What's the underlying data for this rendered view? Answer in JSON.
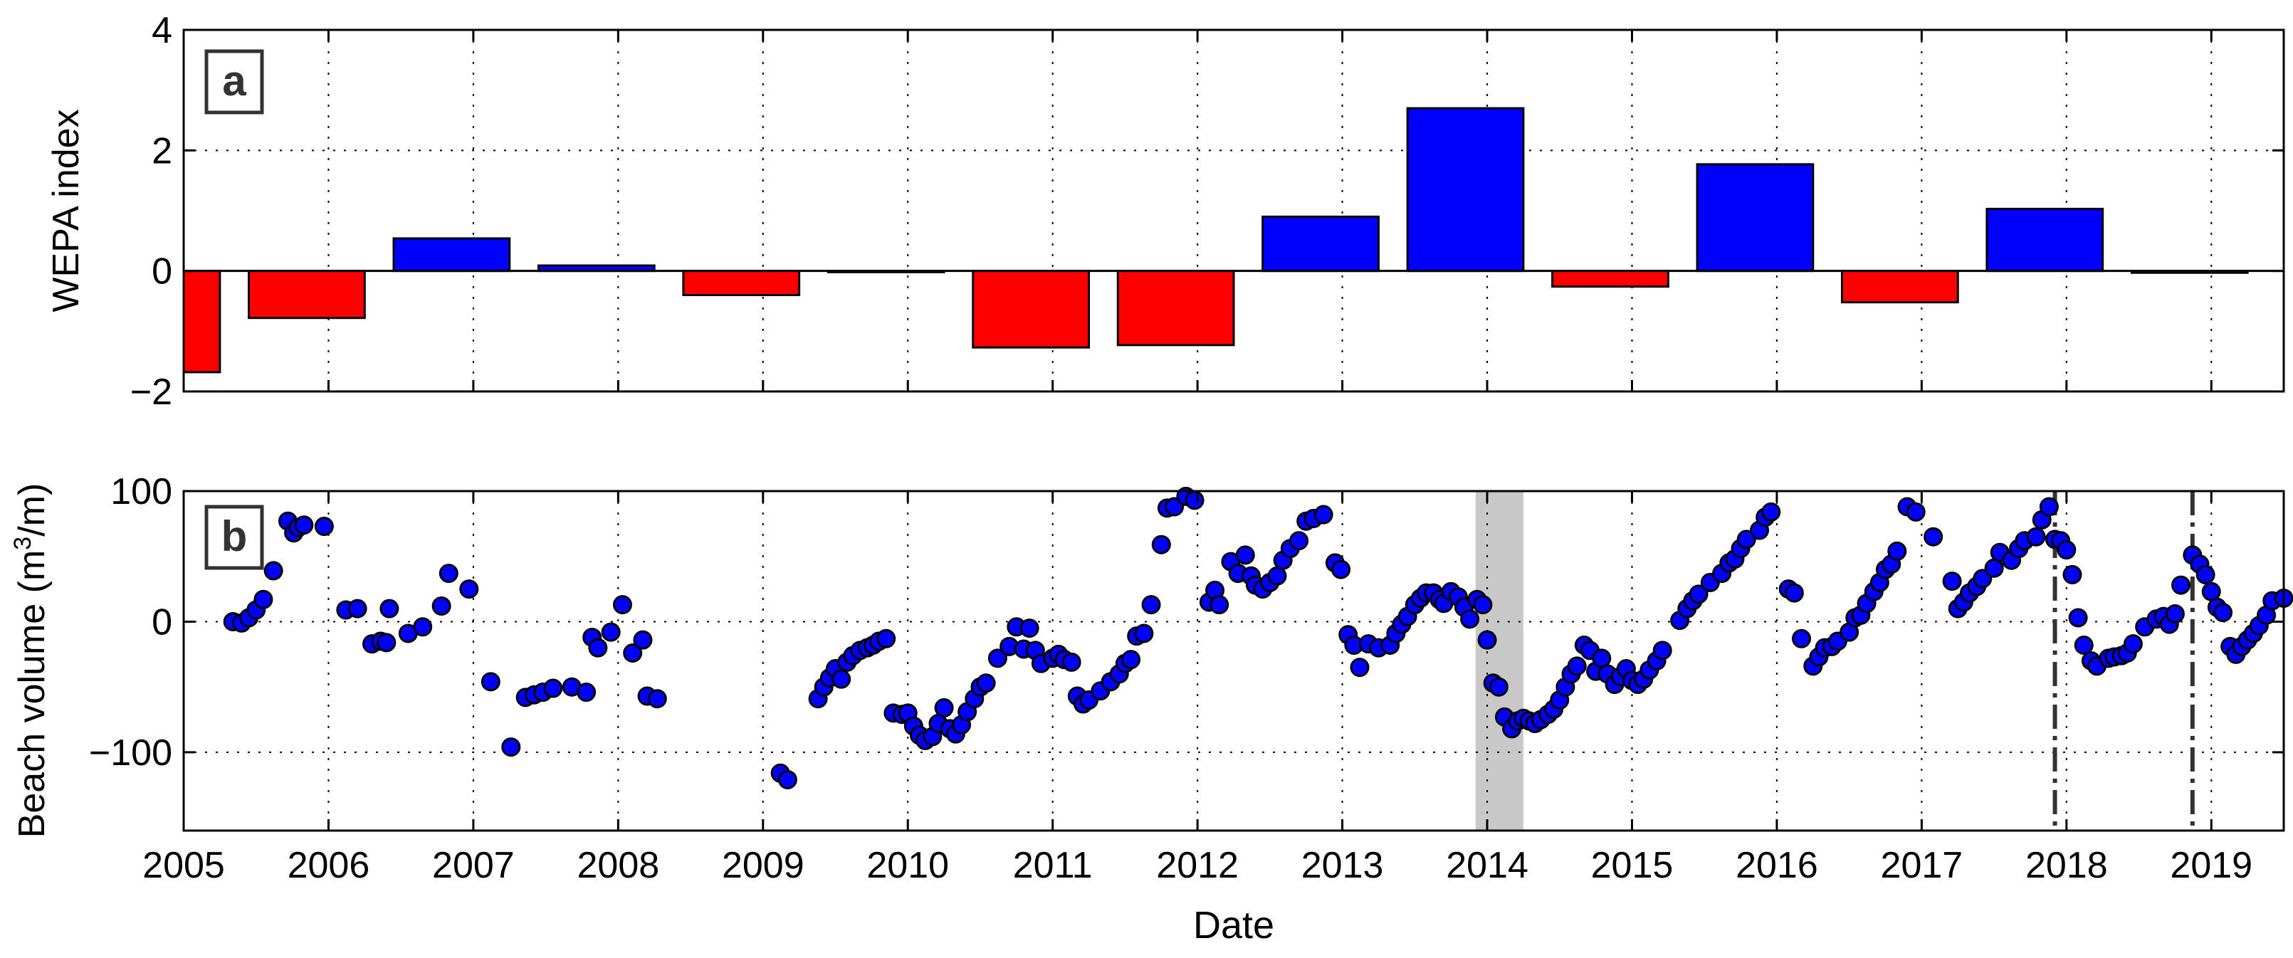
{
  "panels": {
    "a": {
      "label": "a",
      "ylabel": "WEPA index"
    },
    "b": {
      "label": "b",
      "ylabel_main": "Beach volume (m",
      "ylabel_sup": "3",
      "ylabel_tail": "/m)"
    }
  },
  "colors": {
    "negative_bar": "#ff0000",
    "positive_bar": "#0000ff",
    "points": "#0000ff",
    "shade": "#c8c8c8",
    "event_line": "#333333"
  },
  "chart_data": [
    {
      "type": "bar",
      "panel": "a",
      "ylabel": "WEPA index",
      "xlim": [
        2005.0,
        2019.5
      ],
      "ylim": [
        -2,
        4
      ],
      "yticks": [
        -2,
        0,
        2,
        4
      ],
      "xticks": [
        2005,
        2006,
        2007,
        2008,
        2009,
        2010,
        2011,
        2012,
        2013,
        2014,
        2015,
        2016,
        2017,
        2018,
        2019
      ],
      "grid": true,
      "bars": [
        {
          "start": 2005.0,
          "end": 2005.25,
          "value": -1.68
        },
        {
          "start": 2005.45,
          "end": 2006.25,
          "value": -0.78
        },
        {
          "start": 2006.45,
          "end": 2007.25,
          "value": 0.54
        },
        {
          "start": 2007.45,
          "end": 2008.25,
          "value": 0.09
        },
        {
          "start": 2008.45,
          "end": 2009.25,
          "value": -0.4
        },
        {
          "start": 2009.45,
          "end": 2010.25,
          "value": -0.02
        },
        {
          "start": 2010.45,
          "end": 2011.25,
          "value": -1.27
        },
        {
          "start": 2011.45,
          "end": 2012.25,
          "value": -1.23
        },
        {
          "start": 2012.45,
          "end": 2013.25,
          "value": 0.9
        },
        {
          "start": 2013.45,
          "end": 2014.25,
          "value": 2.7
        },
        {
          "start": 2014.45,
          "end": 2015.25,
          "value": -0.26
        },
        {
          "start": 2015.45,
          "end": 2016.25,
          "value": 1.77
        },
        {
          "start": 2016.45,
          "end": 2017.25,
          "value": -0.52
        },
        {
          "start": 2017.45,
          "end": 2018.25,
          "value": 1.03
        },
        {
          "start": 2018.45,
          "end": 2019.25,
          "value": -0.03
        }
      ]
    },
    {
      "type": "scatter",
      "panel": "b",
      "xlabel": "Date",
      "ylabel": "Beach volume (m³/m)",
      "xlim": [
        2005.0,
        2019.5
      ],
      "ylim": [
        -160,
        100
      ],
      "yticks": [
        -100,
        0,
        100
      ],
      "xticks": [
        2005,
        2006,
        2007,
        2008,
        2009,
        2010,
        2011,
        2012,
        2013,
        2014,
        2015,
        2016,
        2017,
        2018,
        2019
      ],
      "grid": true,
      "shaded_range": [
        2013.92,
        2014.25
      ],
      "event_lines": [
        2017.92,
        2018.87
      ],
      "points": [
        [
          2005.34,
          0
        ],
        [
          2005.4,
          -1
        ],
        [
          2005.45,
          3
        ],
        [
          2005.5,
          9
        ],
        [
          2005.55,
          17
        ],
        [
          2005.62,
          39
        ],
        [
          2005.72,
          77
        ],
        [
          2005.76,
          68
        ],
        [
          2005.79,
          72
        ],
        [
          2005.83,
          74
        ],
        [
          2005.97,
          73
        ],
        [
          2006.12,
          9
        ],
        [
          2006.2,
          10
        ],
        [
          2006.3,
          -17
        ],
        [
          2006.36,
          -15
        ],
        [
          2006.4,
          -16
        ],
        [
          2006.42,
          10
        ],
        [
          2006.55,
          -9
        ],
        [
          2006.65,
          -4
        ],
        [
          2006.78,
          12
        ],
        [
          2006.83,
          37
        ],
        [
          2006.97,
          25
        ],
        [
          2007.12,
          -46
        ],
        [
          2007.26,
          -96
        ],
        [
          2007.36,
          -58
        ],
        [
          2007.42,
          -56
        ],
        [
          2007.48,
          -54
        ],
        [
          2007.55,
          -51
        ],
        [
          2007.68,
          -50
        ],
        [
          2007.78,
          -54
        ],
        [
          2007.82,
          -12
        ],
        [
          2007.86,
          -20
        ],
        [
          2007.95,
          -8
        ],
        [
          2008.03,
          13
        ],
        [
          2008.1,
          -24
        ],
        [
          2008.17,
          -14
        ],
        [
          2008.2,
          -57
        ],
        [
          2008.27,
          -59
        ],
        [
          2009.12,
          -116
        ],
        [
          2009.17,
          -121
        ],
        [
          2009.38,
          -59
        ],
        [
          2009.42,
          -50
        ],
        [
          2009.46,
          -43
        ],
        [
          2009.5,
          -36
        ],
        [
          2009.54,
          -44
        ],
        [
          2009.58,
          -31
        ],
        [
          2009.62,
          -26
        ],
        [
          2009.67,
          -22
        ],
        [
          2009.72,
          -20
        ],
        [
          2009.76,
          -18
        ],
        [
          2009.8,
          -15
        ],
        [
          2009.85,
          -13
        ],
        [
          2009.9,
          -70
        ],
        [
          2009.96,
          -71
        ],
        [
          2010.0,
          -70
        ],
        [
          2010.04,
          -80
        ],
        [
          2010.08,
          -87
        ],
        [
          2010.12,
          -91
        ],
        [
          2010.17,
          -88
        ],
        [
          2010.21,
          -78
        ],
        [
          2010.25,
          -66
        ],
        [
          2010.29,
          -82
        ],
        [
          2010.33,
          -86
        ],
        [
          2010.37,
          -79
        ],
        [
          2010.41,
          -69
        ],
        [
          2010.46,
          -59
        ],
        [
          2010.5,
          -50
        ],
        [
          2010.54,
          -47
        ],
        [
          2010.62,
          -28
        ],
        [
          2010.7,
          -19
        ],
        [
          2010.75,
          -4
        ],
        [
          2010.8,
          -21
        ],
        [
          2010.84,
          -5
        ],
        [
          2010.88,
          -22
        ],
        [
          2010.92,
          -32
        ],
        [
          2011.0,
          -28
        ],
        [
          2011.04,
          -25
        ],
        [
          2011.08,
          -29
        ],
        [
          2011.13,
          -31
        ],
        [
          2011.17,
          -57
        ],
        [
          2011.21,
          -63
        ],
        [
          2011.25,
          -60
        ],
        [
          2011.33,
          -53
        ],
        [
          2011.4,
          -46
        ],
        [
          2011.46,
          -40
        ],
        [
          2011.5,
          -32
        ],
        [
          2011.54,
          -29
        ],
        [
          2011.58,
          -11
        ],
        [
          2011.63,
          -9
        ],
        [
          2011.68,
          13
        ],
        [
          2011.75,
          59
        ],
        [
          2011.79,
          87
        ],
        [
          2011.84,
          88
        ],
        [
          2011.92,
          96
        ],
        [
          2011.98,
          93
        ],
        [
          2012.08,
          15
        ],
        [
          2012.12,
          24
        ],
        [
          2012.15,
          13
        ],
        [
          2012.23,
          46
        ],
        [
          2012.28,
          37
        ],
        [
          2012.33,
          51
        ],
        [
          2012.37,
          35
        ],
        [
          2012.4,
          28
        ],
        [
          2012.45,
          25
        ],
        [
          2012.5,
          30
        ],
        [
          2012.55,
          35
        ],
        [
          2012.59,
          47
        ],
        [
          2012.64,
          56
        ],
        [
          2012.7,
          62
        ],
        [
          2012.75,
          77
        ],
        [
          2012.8,
          79
        ],
        [
          2012.87,
          82
        ],
        [
          2012.95,
          45
        ],
        [
          2012.99,
          40
        ],
        [
          2013.04,
          -10
        ],
        [
          2013.08,
          -18
        ],
        [
          2013.12,
          -35
        ],
        [
          2013.18,
          -17
        ],
        [
          2013.25,
          -20
        ],
        [
          2013.33,
          -18
        ],
        [
          2013.37,
          -9
        ],
        [
          2013.41,
          -2
        ],
        [
          2013.45,
          4
        ],
        [
          2013.5,
          13
        ],
        [
          2013.54,
          18
        ],
        [
          2013.58,
          22
        ],
        [
          2013.63,
          22
        ],
        [
          2013.67,
          17
        ],
        [
          2013.7,
          14
        ],
        [
          2013.75,
          23
        ],
        [
          2013.8,
          19
        ],
        [
          2013.84,
          11
        ],
        [
          2013.88,
          2
        ],
        [
          2013.93,
          17
        ],
        [
          2013.97,
          13
        ],
        [
          2014.0,
          -14
        ],
        [
          2014.04,
          -47
        ],
        [
          2014.08,
          -50
        ],
        [
          2014.12,
          -73
        ],
        [
          2014.17,
          -82
        ],
        [
          2014.21,
          -76
        ],
        [
          2014.25,
          -74
        ],
        [
          2014.29,
          -76
        ],
        [
          2014.33,
          -78
        ],
        [
          2014.37,
          -75
        ],
        [
          2014.42,
          -71
        ],
        [
          2014.46,
          -67
        ],
        [
          2014.5,
          -60
        ],
        [
          2014.54,
          -50
        ],
        [
          2014.58,
          -40
        ],
        [
          2014.62,
          -34
        ],
        [
          2014.67,
          -18
        ],
        [
          2014.71,
          -22
        ],
        [
          2014.75,
          -38
        ],
        [
          2014.79,
          -28
        ],
        [
          2014.83,
          -40
        ],
        [
          2014.88,
          -48
        ],
        [
          2014.92,
          -42
        ],
        [
          2014.96,
          -36
        ],
        [
          2015.0,
          -45
        ],
        [
          2015.04,
          -48
        ],
        [
          2015.08,
          -44
        ],
        [
          2015.12,
          -37
        ],
        [
          2015.17,
          -30
        ],
        [
          2015.21,
          -22
        ],
        [
          2015.33,
          1
        ],
        [
          2015.38,
          10
        ],
        [
          2015.42,
          16
        ],
        [
          2015.46,
          21
        ],
        [
          2015.54,
          30
        ],
        [
          2015.62,
          37
        ],
        [
          2015.67,
          45
        ],
        [
          2015.71,
          48
        ],
        [
          2015.75,
          56
        ],
        [
          2015.79,
          63
        ],
        [
          2015.88,
          70
        ],
        [
          2015.92,
          80
        ],
        [
          2015.96,
          84
        ],
        [
          2016.08,
          25
        ],
        [
          2016.12,
          22
        ],
        [
          2016.17,
          -13
        ],
        [
          2016.25,
          -34
        ],
        [
          2016.29,
          -27
        ],
        [
          2016.33,
          -20
        ],
        [
          2016.38,
          -19
        ],
        [
          2016.42,
          -15
        ],
        [
          2016.5,
          -8
        ],
        [
          2016.54,
          3
        ],
        [
          2016.58,
          5
        ],
        [
          2016.62,
          14
        ],
        [
          2016.67,
          23
        ],
        [
          2016.71,
          30
        ],
        [
          2016.75,
          40
        ],
        [
          2016.79,
          44
        ],
        [
          2016.83,
          54
        ],
        [
          2016.9,
          88
        ],
        [
          2016.96,
          84
        ],
        [
          2017.08,
          65
        ],
        [
          2017.21,
          31
        ],
        [
          2017.25,
          10
        ],
        [
          2017.29,
          15
        ],
        [
          2017.33,
          22
        ],
        [
          2017.38,
          27
        ],
        [
          2017.42,
          33
        ],
        [
          2017.5,
          41
        ],
        [
          2017.54,
          53
        ],
        [
          2017.62,
          47
        ],
        [
          2017.67,
          56
        ],
        [
          2017.71,
          62
        ],
        [
          2017.79,
          65
        ],
        [
          2017.83,
          78
        ],
        [
          2017.88,
          88
        ],
        [
          2017.92,
          63
        ],
        [
          2017.96,
          62
        ],
        [
          2018.0,
          55
        ],
        [
          2018.04,
          36
        ],
        [
          2018.08,
          3
        ],
        [
          2018.12,
          -18
        ],
        [
          2018.17,
          -30
        ],
        [
          2018.21,
          -34
        ],
        [
          2018.29,
          -28
        ],
        [
          2018.33,
          -27
        ],
        [
          2018.38,
          -26
        ],
        [
          2018.42,
          -24
        ],
        [
          2018.46,
          -17
        ],
        [
          2018.54,
          -4
        ],
        [
          2018.62,
          2
        ],
        [
          2018.67,
          4
        ],
        [
          2018.71,
          -2
        ],
        [
          2018.75,
          6
        ],
        [
          2018.79,
          28
        ],
        [
          2018.87,
          51
        ],
        [
          2018.92,
          44
        ],
        [
          2018.96,
          36
        ],
        [
          2019.0,
          23
        ],
        [
          2019.04,
          11
        ],
        [
          2019.08,
          7
        ],
        [
          2019.13,
          -19
        ],
        [
          2019.17,
          -25
        ],
        [
          2019.21,
          -19
        ],
        [
          2019.25,
          -14
        ],
        [
          2019.29,
          -9
        ],
        [
          2019.33,
          -3
        ],
        [
          2019.38,
          5
        ],
        [
          2019.42,
          16
        ],
        [
          2019.5,
          18
        ]
      ]
    }
  ]
}
